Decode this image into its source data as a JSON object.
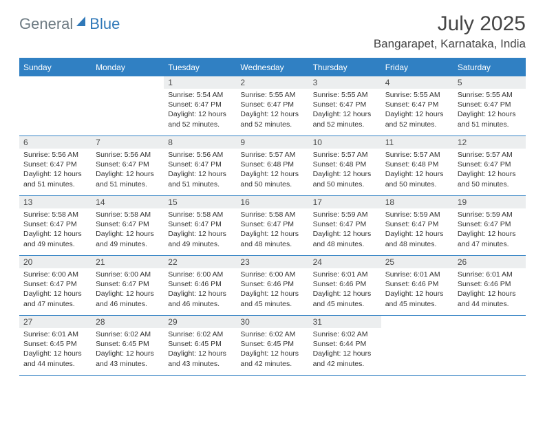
{
  "logo": {
    "word1": "General",
    "word2": "Blue"
  },
  "title": "July 2025",
  "location": "Bangarapet, Karnataka, India",
  "colors": {
    "header_bg": "#3080c3",
    "header_text": "#ffffff",
    "daynum_bg": "#eceeef",
    "body_text": "#333333",
    "logo_gray": "#6d7a82",
    "logo_blue": "#2f78b8",
    "border": "#3080c3"
  },
  "day_names": [
    "Sunday",
    "Monday",
    "Tuesday",
    "Wednesday",
    "Thursday",
    "Friday",
    "Saturday"
  ],
  "weeks": [
    [
      null,
      null,
      {
        "n": "1",
        "sr": "5:54 AM",
        "ss": "6:47 PM",
        "dl": "12 hours and 52 minutes."
      },
      {
        "n": "2",
        "sr": "5:55 AM",
        "ss": "6:47 PM",
        "dl": "12 hours and 52 minutes."
      },
      {
        "n": "3",
        "sr": "5:55 AM",
        "ss": "6:47 PM",
        "dl": "12 hours and 52 minutes."
      },
      {
        "n": "4",
        "sr": "5:55 AM",
        "ss": "6:47 PM",
        "dl": "12 hours and 52 minutes."
      },
      {
        "n": "5",
        "sr": "5:55 AM",
        "ss": "6:47 PM",
        "dl": "12 hours and 51 minutes."
      }
    ],
    [
      {
        "n": "6",
        "sr": "5:56 AM",
        "ss": "6:47 PM",
        "dl": "12 hours and 51 minutes."
      },
      {
        "n": "7",
        "sr": "5:56 AM",
        "ss": "6:47 PM",
        "dl": "12 hours and 51 minutes."
      },
      {
        "n": "8",
        "sr": "5:56 AM",
        "ss": "6:47 PM",
        "dl": "12 hours and 51 minutes."
      },
      {
        "n": "9",
        "sr": "5:57 AM",
        "ss": "6:48 PM",
        "dl": "12 hours and 50 minutes."
      },
      {
        "n": "10",
        "sr": "5:57 AM",
        "ss": "6:48 PM",
        "dl": "12 hours and 50 minutes."
      },
      {
        "n": "11",
        "sr": "5:57 AM",
        "ss": "6:48 PM",
        "dl": "12 hours and 50 minutes."
      },
      {
        "n": "12",
        "sr": "5:57 AM",
        "ss": "6:47 PM",
        "dl": "12 hours and 50 minutes."
      }
    ],
    [
      {
        "n": "13",
        "sr": "5:58 AM",
        "ss": "6:47 PM",
        "dl": "12 hours and 49 minutes."
      },
      {
        "n": "14",
        "sr": "5:58 AM",
        "ss": "6:47 PM",
        "dl": "12 hours and 49 minutes."
      },
      {
        "n": "15",
        "sr": "5:58 AM",
        "ss": "6:47 PM",
        "dl": "12 hours and 49 minutes."
      },
      {
        "n": "16",
        "sr": "5:58 AM",
        "ss": "6:47 PM",
        "dl": "12 hours and 48 minutes."
      },
      {
        "n": "17",
        "sr": "5:59 AM",
        "ss": "6:47 PM",
        "dl": "12 hours and 48 minutes."
      },
      {
        "n": "18",
        "sr": "5:59 AM",
        "ss": "6:47 PM",
        "dl": "12 hours and 48 minutes."
      },
      {
        "n": "19",
        "sr": "5:59 AM",
        "ss": "6:47 PM",
        "dl": "12 hours and 47 minutes."
      }
    ],
    [
      {
        "n": "20",
        "sr": "6:00 AM",
        "ss": "6:47 PM",
        "dl": "12 hours and 47 minutes."
      },
      {
        "n": "21",
        "sr": "6:00 AM",
        "ss": "6:47 PM",
        "dl": "12 hours and 46 minutes."
      },
      {
        "n": "22",
        "sr": "6:00 AM",
        "ss": "6:46 PM",
        "dl": "12 hours and 46 minutes."
      },
      {
        "n": "23",
        "sr": "6:00 AM",
        "ss": "6:46 PM",
        "dl": "12 hours and 45 minutes."
      },
      {
        "n": "24",
        "sr": "6:01 AM",
        "ss": "6:46 PM",
        "dl": "12 hours and 45 minutes."
      },
      {
        "n": "25",
        "sr": "6:01 AM",
        "ss": "6:46 PM",
        "dl": "12 hours and 45 minutes."
      },
      {
        "n": "26",
        "sr": "6:01 AM",
        "ss": "6:46 PM",
        "dl": "12 hours and 44 minutes."
      }
    ],
    [
      {
        "n": "27",
        "sr": "6:01 AM",
        "ss": "6:45 PM",
        "dl": "12 hours and 44 minutes."
      },
      {
        "n": "28",
        "sr": "6:02 AM",
        "ss": "6:45 PM",
        "dl": "12 hours and 43 minutes."
      },
      {
        "n": "29",
        "sr": "6:02 AM",
        "ss": "6:45 PM",
        "dl": "12 hours and 43 minutes."
      },
      {
        "n": "30",
        "sr": "6:02 AM",
        "ss": "6:45 PM",
        "dl": "12 hours and 42 minutes."
      },
      {
        "n": "31",
        "sr": "6:02 AM",
        "ss": "6:44 PM",
        "dl": "12 hours and 42 minutes."
      },
      null,
      null
    ]
  ],
  "labels": {
    "sunrise": "Sunrise:",
    "sunset": "Sunset:",
    "daylight": "Daylight:"
  }
}
